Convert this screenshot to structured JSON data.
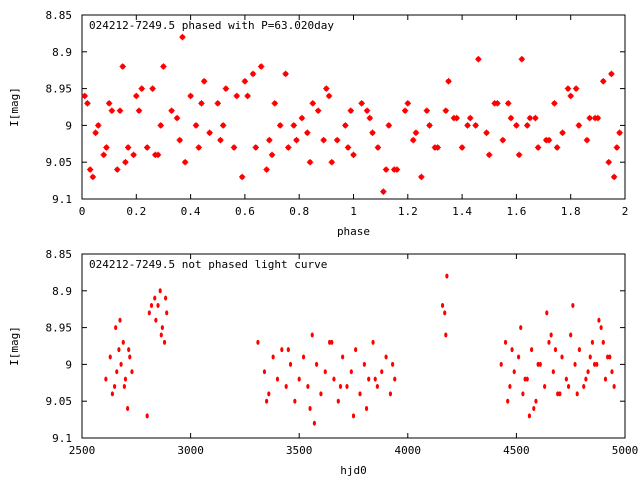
{
  "chart_data": [
    {
      "type": "scatter",
      "title": "024212-7249.5 phased with P=63.020day",
      "xlabel": "phase",
      "ylabel": "I[mag]",
      "xlim": [
        0,
        2
      ],
      "ylim": [
        9.1,
        8.85
      ],
      "y_inverted": true,
      "xticks": [
        "0",
        "0.2",
        "0.4",
        "0.6",
        "0.8",
        "1",
        "1.2",
        "1.4",
        "1.6",
        "1.8",
        "2"
      ],
      "yticks": [
        "8.85",
        "8.9",
        "8.95",
        "9",
        "9.05",
        "9.1"
      ],
      "grid": false,
      "marker_color": "#ff0000",
      "x": [
        0.02,
        0.04,
        0.06,
        0.09,
        0.11,
        0.13,
        0.15,
        0.17,
        0.19,
        0.21,
        0.24,
        0.26,
        0.28,
        0.3,
        0.33,
        0.36,
        0.37,
        0.4,
        0.42,
        0.45,
        0.47,
        0.5,
        0.53,
        0.56,
        0.59,
        0.61,
        0.64,
        0.66,
        0.69,
        0.71,
        0.73,
        0.76,
        0.79,
        0.81,
        0.84,
        0.87,
        0.89,
        0.91,
        0.94,
        0.97,
        1.0,
        1.03,
        1.06,
        1.09,
        1.11,
        1.13,
        1.16,
        1.19,
        1.22,
        1.25,
        1.28,
        1.31,
        1.34,
        1.37,
        1.4,
        1.43,
        1.46,
        1.49,
        1.52,
        1.55,
        1.58,
        1.61,
        1.62,
        1.65,
        1.68,
        1.71,
        1.74,
        1.77,
        1.8,
        1.83,
        1.86,
        1.89,
        1.92,
        1.94,
        1.96,
        1.98,
        0.03,
        0.08,
        0.14,
        0.2,
        0.27,
        0.35,
        0.43,
        0.52,
        0.6,
        0.68,
        0.75,
        0.83,
        0.9,
        0.98,
        1.05,
        1.12,
        1.2,
        1.27,
        1.35,
        1.42,
        1.5,
        1.57,
        1.64,
        1.72,
        1.79,
        1.87,
        1.95,
        0.01,
        0.05,
        0.1,
        0.16,
        0.22,
        0.29,
        0.38,
        0.44,
        0.51,
        0.57,
        0.63,
        0.7,
        0.78,
        0.85,
        0.92,
        0.99,
        1.07,
        1.15,
        1.23,
        1.3,
        1.38,
        1.45,
        1.53,
        1.6,
        1.67,
        1.75,
        1.82,
        1.9,
        1.97
      ],
      "y": [
        8.97,
        9.07,
        9.0,
        9.03,
        8.98,
        9.06,
        8.92,
        9.03,
        9.04,
        8.98,
        9.03,
        8.95,
        9.04,
        8.92,
        8.98,
        9.02,
        8.88,
        8.96,
        9.0,
        8.94,
        9.01,
        8.97,
        8.95,
        9.03,
        9.07,
        8.96,
        9.03,
        8.92,
        9.02,
        8.97,
        9.0,
        9.03,
        9.02,
        8.99,
        9.05,
        8.98,
        9.02,
        8.96,
        9.02,
        9.0,
        9.04,
        8.97,
        8.99,
        9.03,
        9.09,
        9.0,
        9.06,
        8.98,
        9.02,
        9.07,
        9.0,
        9.03,
        8.98,
        8.99,
        9.03,
        8.99,
        8.91,
        9.01,
        8.97,
        9.02,
        8.99,
        9.04,
        8.91,
        8.99,
        9.03,
        9.02,
        8.97,
        9.01,
        8.96,
        9.0,
        9.02,
        8.99,
        8.94,
        9.05,
        9.07,
        9.01,
        9.06,
        9.04,
        8.98,
        8.96,
        9.04,
        8.99,
        9.03,
        9.0,
        8.94,
        9.06,
        8.93,
        9.01,
        8.95,
        9.03,
        8.98,
        9.06,
        8.97,
        8.98,
        8.94,
        9.0,
        9.04,
        8.97,
        9.0,
        9.02,
        8.95,
        8.99,
        8.93,
        8.96,
        9.01,
        8.97,
        9.05,
        8.95,
        9.0,
        9.05,
        8.97,
        9.02,
        8.96,
        8.93,
        9.04,
        9.0,
        8.97,
        9.05,
        8.98,
        9.01,
        9.06,
        9.01,
        9.03,
        8.99,
        9.0,
        8.97,
        9.0,
        8.99,
        9.03,
        8.95,
        8.99,
        9.03
      ]
    },
    {
      "type": "scatter",
      "title": "024212-7249.5 not phased light curve",
      "xlabel": "hjd0",
      "ylabel": "I[mag]",
      "xlim": [
        2500,
        5000
      ],
      "ylim": [
        9.1,
        8.85
      ],
      "y_inverted": true,
      "xticks": [
        "2500",
        "3000",
        "3500",
        "4000",
        "4500",
        "5000"
      ],
      "yticks": [
        "8.85",
        "8.9",
        "8.95",
        "9",
        "9.05",
        "9.1"
      ],
      "grid": false,
      "marker_color": "#ff0000",
      "x": [
        2610,
        2630,
        2650,
        2660,
        2670,
        2680,
        2690,
        2700,
        2710,
        2720,
        2730,
        2640,
        2655,
        2675,
        2695,
        2715,
        2800,
        2820,
        2840,
        2850,
        2860,
        2870,
        2880,
        2890,
        2835,
        2865,
        2885,
        2810,
        3310,
        3340,
        3360,
        3380,
        3400,
        3420,
        3440,
        3460,
        3480,
        3500,
        3520,
        3540,
        3560,
        3580,
        3600,
        3620,
        3640,
        3660,
        3680,
        3700,
        3720,
        3740,
        3760,
        3780,
        3800,
        3820,
        3840,
        3860,
        3880,
        3900,
        3920,
        3940,
        3350,
        3450,
        3550,
        3650,
        3750,
        3850,
        3930,
        3570,
        3690,
        3810,
        4160,
        4170,
        4180,
        4175,
        4430,
        4450,
        4470,
        4490,
        4510,
        4530,
        4550,
        4570,
        4590,
        4610,
        4630,
        4650,
        4670,
        4690,
        4710,
        4730,
        4750,
        4770,
        4790,
        4810,
        4830,
        4850,
        4870,
        4890,
        4910,
        4930,
        4950,
        4460,
        4520,
        4580,
        4640,
        4700,
        4760,
        4820,
        4880,
        4940,
        4480,
        4560,
        4660,
        4740,
        4840,
        4900,
        4540,
        4600,
        4680,
        4780,
        4860,
        4920
      ],
      "y": [
        9.02,
        8.99,
        9.03,
        9.01,
        8.98,
        9.0,
        8.97,
        9.02,
        9.06,
        8.99,
        9.01,
        9.04,
        8.95,
        8.94,
        9.03,
        8.98,
        9.07,
        8.92,
        8.94,
        8.92,
        8.9,
        8.95,
        8.97,
        8.93,
        8.91,
        8.96,
        8.91,
        8.93,
        8.97,
        9.01,
        9.04,
        8.99,
        9.02,
        8.98,
        9.03,
        9.0,
        9.05,
        9.02,
        8.99,
        9.03,
        8.96,
        9.0,
        9.04,
        9.01,
        8.97,
        9.02,
        9.05,
        8.99,
        9.03,
        9.01,
        8.98,
        9.04,
        9.0,
        9.02,
        8.97,
        9.03,
        9.01,
        8.99,
        9.04,
        9.02,
        9.05,
        8.98,
        9.06,
        8.97,
        9.07,
        9.02,
        9.0,
        9.08,
        9.03,
        9.06,
        8.92,
        8.93,
        8.88,
        8.96,
        9.0,
        8.97,
        9.03,
        9.01,
        8.99,
        9.04,
        9.02,
        8.98,
        9.05,
        9.0,
        9.03,
        8.97,
        9.01,
        9.04,
        8.99,
        9.02,
        8.96,
        9.0,
        8.98,
        9.03,
        9.01,
        8.97,
        9.0,
        8.95,
        9.02,
        8.99,
        9.03,
        9.05,
        8.95,
        9.06,
        8.93,
        9.04,
        8.92,
        9.02,
        8.94,
        9.01,
        8.98,
        9.07,
        8.96,
        9.03,
        8.99,
        8.97,
        9.02,
        9.0,
        8.98,
        9.04,
        9.0,
        8.99
      ]
    }
  ]
}
